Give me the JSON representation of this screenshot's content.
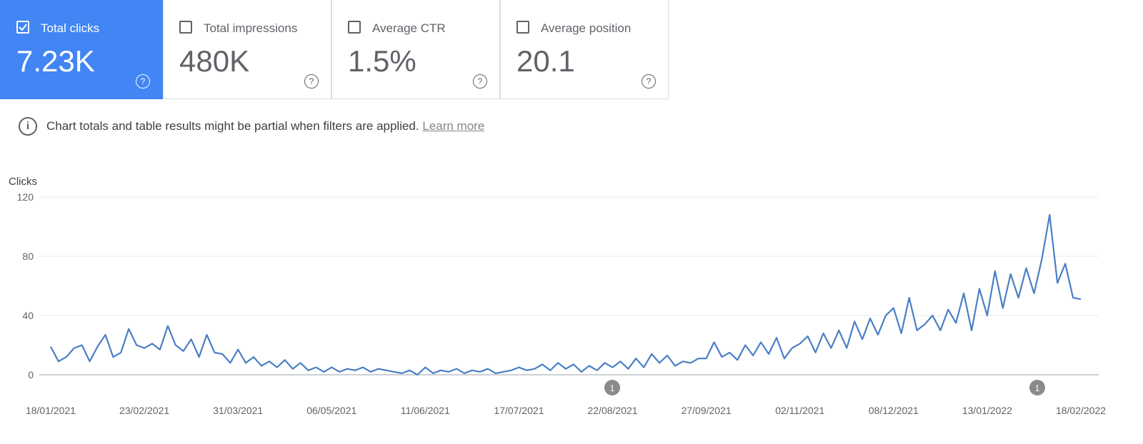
{
  "metrics": [
    {
      "label": "Total clicks",
      "value": "7.23K",
      "selected": true
    },
    {
      "label": "Total impressions",
      "value": "480K",
      "selected": false
    },
    {
      "label": "Average CTR",
      "value": "1.5%",
      "selected": false
    },
    {
      "label": "Average position",
      "value": "20.1",
      "selected": false
    }
  ],
  "notice": {
    "text": "Chart totals and table results might be partial when filters are applied.",
    "link": "Learn more"
  },
  "chart_data": {
    "type": "line",
    "y_label": "Clicks",
    "color": "#4a7fc4",
    "ylim": [
      0,
      120
    ],
    "yticks": [
      0,
      40,
      80,
      120
    ],
    "grid": true,
    "categories": [
      "18/01/2021",
      null,
      null,
      null,
      null,
      null,
      null,
      null,
      null,
      null,
      null,
      null,
      "23/02/2021",
      null,
      null,
      null,
      null,
      null,
      null,
      null,
      null,
      null,
      null,
      null,
      "31/03/2021",
      null,
      null,
      null,
      null,
      null,
      null,
      null,
      null,
      null,
      null,
      null,
      "06/05/2021",
      null,
      null,
      null,
      null,
      null,
      null,
      null,
      null,
      null,
      null,
      null,
      "11/06/2021",
      null,
      null,
      null,
      null,
      null,
      null,
      null,
      null,
      null,
      null,
      null,
      "17/07/2021",
      null,
      null,
      null,
      null,
      null,
      null,
      null,
      null,
      null,
      null,
      null,
      "22/08/2021",
      null,
      null,
      null,
      null,
      null,
      null,
      null,
      null,
      null,
      null,
      null,
      "27/09/2021",
      null,
      null,
      null,
      null,
      null,
      null,
      null,
      null,
      null,
      null,
      null,
      "02/11/2021",
      null,
      null,
      null,
      null,
      null,
      null,
      null,
      null,
      null,
      null,
      null,
      "08/12/2021",
      null,
      null,
      null,
      null,
      null,
      null,
      null,
      null,
      null,
      null,
      null,
      "13/01/2022",
      null,
      null,
      null,
      null,
      null,
      null,
      null,
      null,
      null,
      null,
      null,
      "18/02/2022"
    ],
    "values": [
      19,
      9,
      12,
      18,
      20,
      9,
      19,
      27,
      12,
      15,
      31,
      20,
      18,
      21,
      17,
      33,
      20,
      16,
      24,
      12,
      27,
      15,
      14,
      8,
      17,
      8,
      12,
      6,
      9,
      5,
      10,
      4,
      8,
      3,
      5,
      2,
      5,
      2,
      4,
      3,
      5,
      2,
      4,
      3,
      2,
      1,
      3,
      0,
      5,
      1,
      3,
      2,
      4,
      1,
      3,
      2,
      4,
      1,
      2,
      3,
      5,
      3,
      4,
      7,
      3,
      8,
      4,
      7,
      2,
      6,
      3,
      8,
      5,
      9,
      4,
      11,
      5,
      14,
      8,
      13,
      6,
      9,
      8,
      11,
      11,
      22,
      12,
      15,
      10,
      20,
      13,
      22,
      14,
      25,
      11,
      18,
      21,
      26,
      15,
      28,
      18,
      30,
      18,
      36,
      24,
      38,
      27,
      40,
      45,
      28,
      52,
      30,
      34,
      40,
      30,
      44,
      35,
      55,
      30,
      58,
      40,
      70,
      45,
      68,
      52,
      72,
      55,
      78,
      108,
      62,
      75,
      52,
      51
    ],
    "annotations": [
      {
        "text": "1"
      },
      {
        "text": "1"
      }
    ]
  }
}
